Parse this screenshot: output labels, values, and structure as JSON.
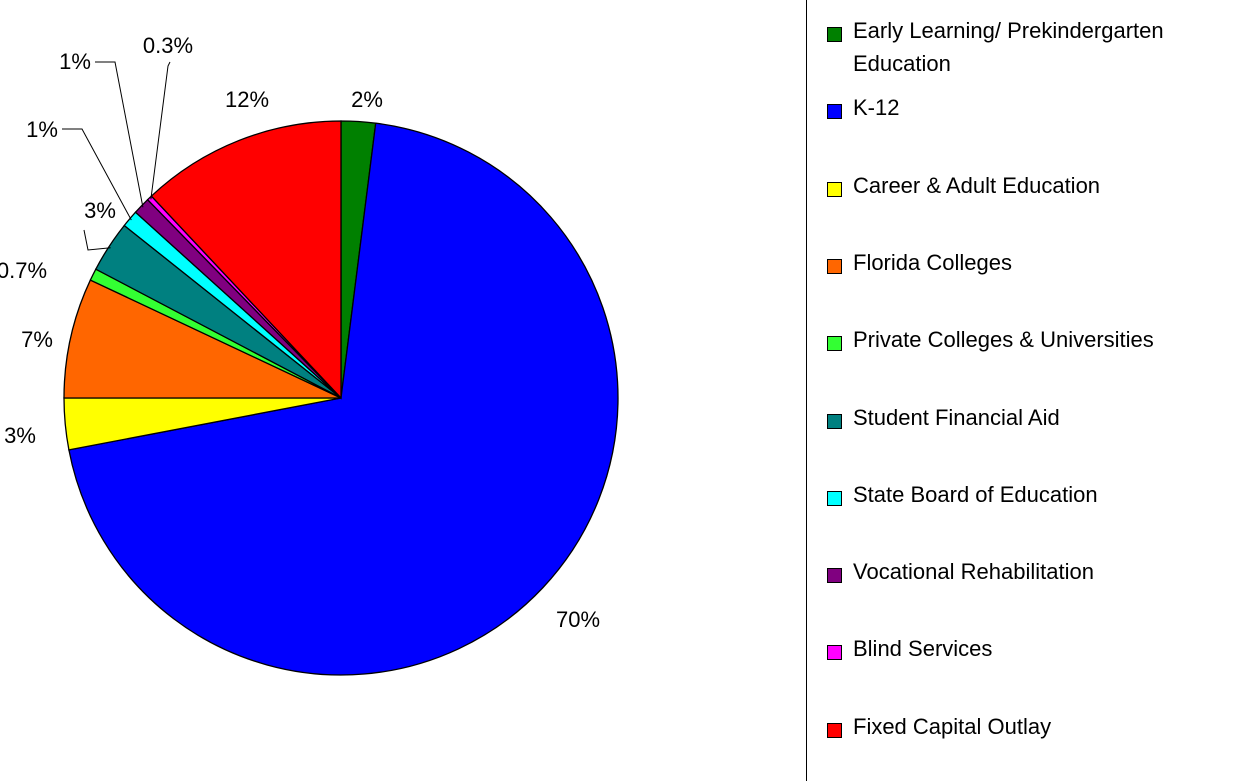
{
  "chart_data": {
    "type": "pie",
    "categories": [
      "Early Learning/ Prekindergarten Education",
      "K-12",
      "Career & Adult Education",
      "Florida Colleges",
      "Private Colleges & Universities",
      "Student Financial Aid",
      "State Board of Education",
      "Vocational Rehabilitation",
      "Blind Services",
      "Fixed Capital Outlay"
    ],
    "values": [
      2,
      70,
      3,
      7,
      0.7,
      3,
      1,
      1,
      0.3,
      12
    ],
    "value_labels": [
      "2%",
      "70%",
      "3%",
      "7%",
      "0.7%",
      "3%",
      "1%",
      "1%",
      "0.3%",
      "12%"
    ],
    "colors": [
      "#008000",
      "#0000ff",
      "#ffff00",
      "#ff6600",
      "#33ff33",
      "#008080",
      "#00ffff",
      "#800080",
      "#ff00ff",
      "#ff0000"
    ],
    "legend": "right"
  }
}
